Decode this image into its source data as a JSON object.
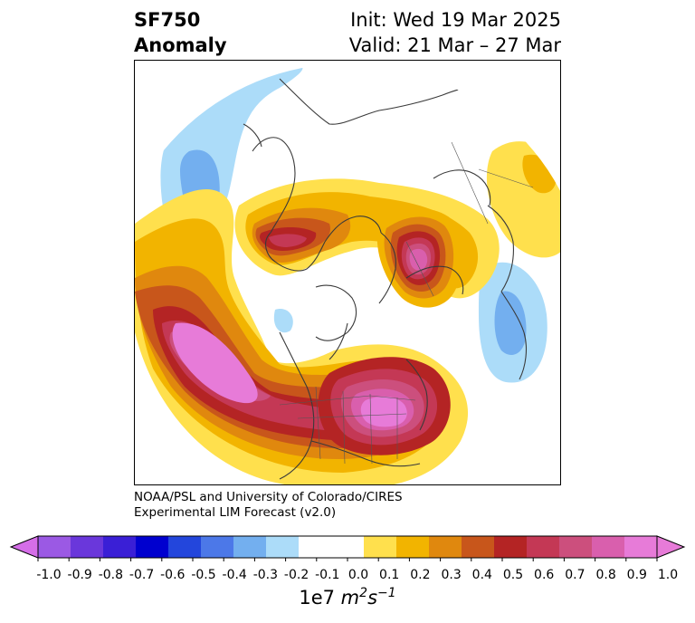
{
  "title": {
    "left_line1": "SF750",
    "left_line2": "Anomaly",
    "right_line1": "Init: Wed 19 Mar 2025",
    "right_line2": "Valid: 21 Mar – 27 Mar"
  },
  "credit": {
    "line1": "NOAA/PSL and University of Colorado/CIRES",
    "line2": "Experimental LIM Forecast (v2.0)"
  },
  "colorbar": {
    "ticks": [
      "-1.0",
      "-0.9",
      "-0.8",
      "-0.7",
      "-0.6",
      "-0.5",
      "-0.4",
      "-0.3",
      "-0.2",
      "-0.1",
      "0.0",
      "0.1",
      "0.2",
      "0.3",
      "0.4",
      "0.5",
      "0.6",
      "0.7",
      "0.8",
      "0.9",
      "1.0"
    ],
    "colors": [
      "#9b59e4",
      "#6a37db",
      "#3a1fd6",
      "#0000cf",
      "#2346dc",
      "#4c78e8",
      "#73afef",
      "#acdcf9",
      "#ffffff",
      "#ffffff",
      "#ffe04d",
      "#f2b400",
      "#e0880e",
      "#c8561b",
      "#b42424",
      "#c43855",
      "#cc4f7d",
      "#d95fad",
      "#e77bd8"
    ],
    "under_color": "#d56ee8",
    "over_color": "#e77bd8",
    "units_prefix": "1e7",
    "units_m": "m",
    "units_m_exp": "2",
    "units_s": "s",
    "units_s_exp": "−1"
  },
  "map_colors": {
    "neg_light": "#acdcf9",
    "neg_mid": "#73afef",
    "pos_01": "#ffe04d",
    "pos_02": "#f2b400",
    "pos_03": "#e0880e",
    "pos_04": "#c8561b",
    "pos_05": "#b42424",
    "pos_06": "#c43855",
    "pos_07": "#cc4f7d",
    "pos_08": "#d95fad",
    "pos_09": "#e77bd8",
    "coast": "#3a3a3a"
  }
}
